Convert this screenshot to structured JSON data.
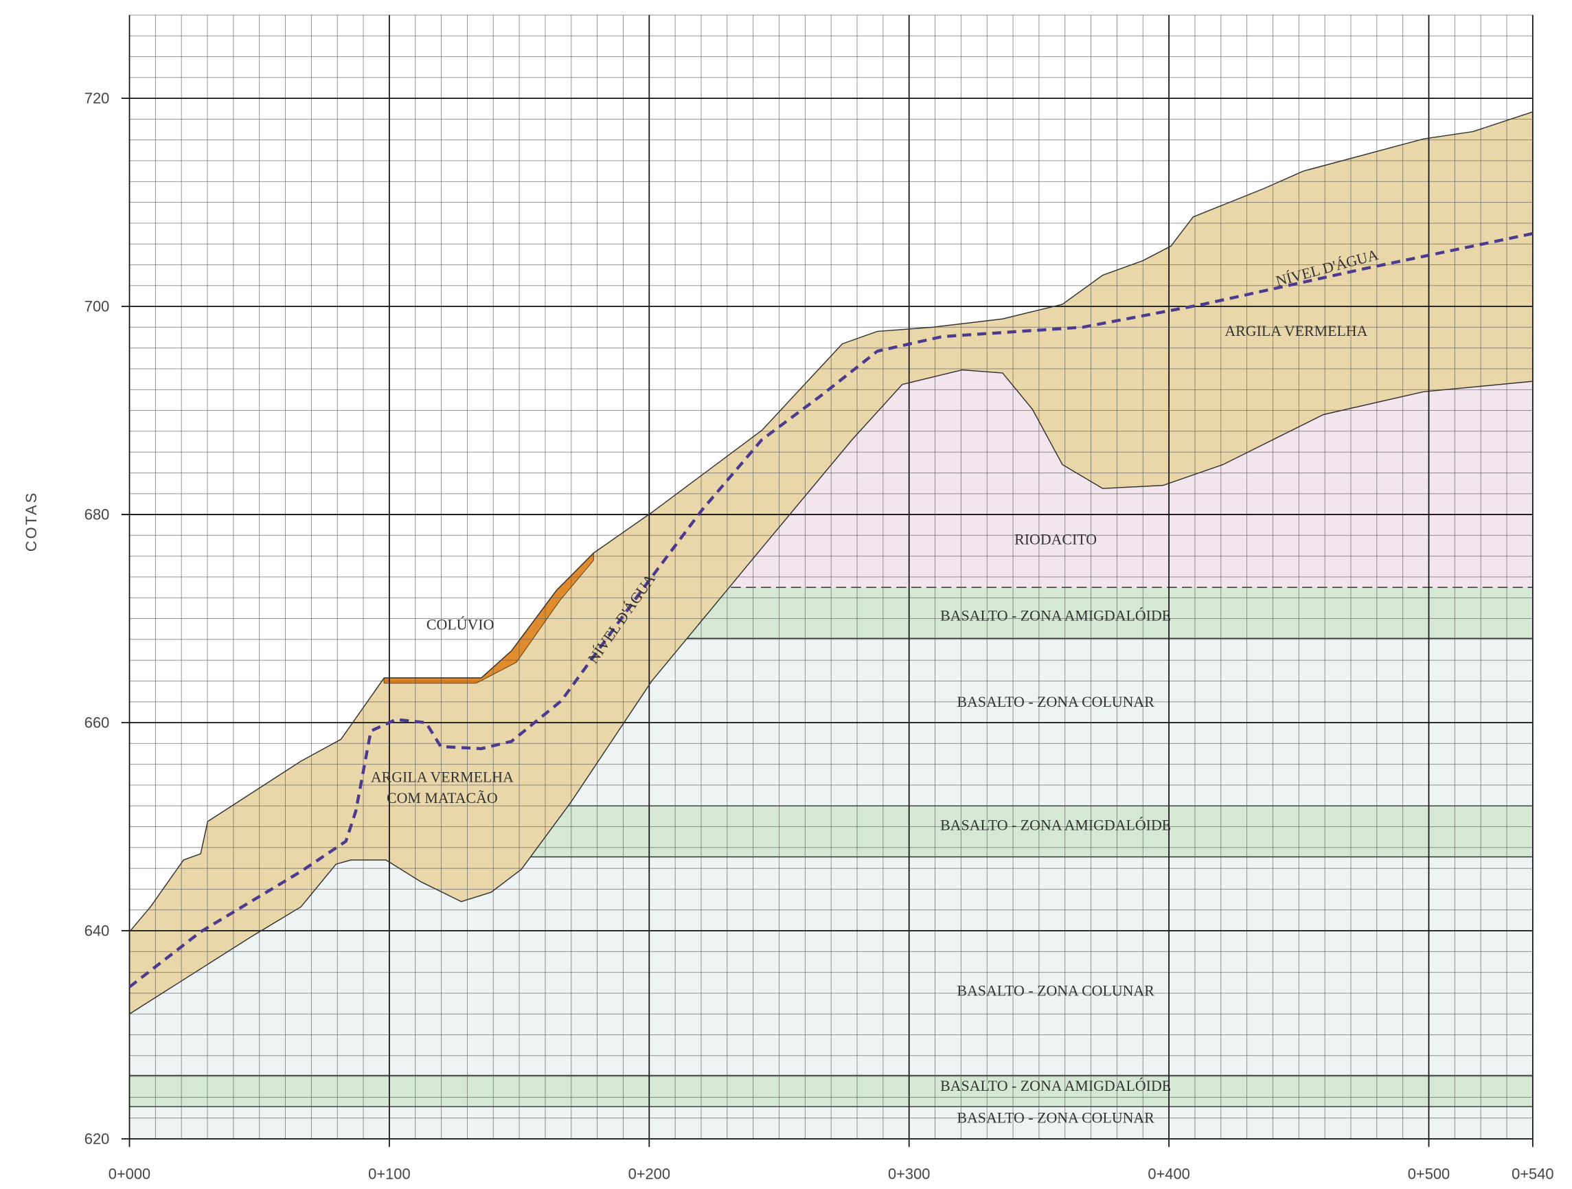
{
  "chart_data": {
    "type": "section",
    "ylabel": "COTAS",
    "xlim": [
      0,
      540
    ],
    "ylim": [
      620,
      728
    ],
    "xticks": [
      {
        "value": 0,
        "label": "0+000"
      },
      {
        "value": 100,
        "label": "0+100"
      },
      {
        "value": 200,
        "label": "0+200"
      },
      {
        "value": 300,
        "label": "0+300"
      },
      {
        "value": 400,
        "label": "0+400"
      },
      {
        "value": 500,
        "label": "0+500"
      },
      {
        "value": 540,
        "label": "0+540"
      }
    ],
    "yticks": [
      620,
      640,
      660,
      680,
      700,
      720
    ],
    "grid": true,
    "minor_grid": {
      "x": 10,
      "y": 2
    },
    "layers": [
      {
        "name": "BASALTO - ZONA COLUNAR",
        "bottom": 620,
        "top": 623.1,
        "color": "#eef3f4"
      },
      {
        "name": "BASALTO - ZONA AMIGDALÓIDE",
        "bottom": 623.1,
        "top": 626.1,
        "color": "#d5e8d3"
      },
      {
        "name": "BASALTO - ZONA COLUNAR",
        "bottom": 626.1,
        "top": 647.1,
        "color": "#eef3f4"
      },
      {
        "name": "BASALTO - ZONA AMIGDALÓIDE",
        "bottom": 647.1,
        "top": 652,
        "color": "#d5e8d3"
      },
      {
        "name": "BASALTO - ZONA COLUNAR",
        "bottom": 652,
        "top": 668.1,
        "color": "#eef3f4"
      },
      {
        "name": "BASALTO - ZONA AMIGDALÓIDE",
        "bottom": 668.1,
        "top": 673,
        "color": "#d5e8d3"
      },
      {
        "name": "RIODACITO",
        "bottom": 673,
        "top": 700,
        "color": "#f3e5ee"
      }
    ],
    "soil": {
      "labels": [
        "ARGILA VERMELHA",
        "ARGILA VERMELHA",
        "COM MATACÃO"
      ],
      "color": "#e9d7aa"
    },
    "surface": {
      "x": [
        0,
        8.1,
        20.8,
        27.4,
        30.1,
        66,
        81.4,
        98,
        135.4,
        147,
        164.3,
        178.6,
        201,
        243.4,
        274.3,
        287.8,
        309,
        336,
        359,
        374.5,
        390,
        400.8,
        409.3,
        436.3,
        451.7,
        498,
        517,
        540
      ],
      "y": [
        639.9,
        642.3,
        646.8,
        647.4,
        650.5,
        656.3,
        658.4,
        664.3,
        664.3,
        666.9,
        672.7,
        676.3,
        680.2,
        688.1,
        696.4,
        697.6,
        698,
        698.8,
        700.2,
        703,
        704.4,
        705.8,
        708.6,
        711.3,
        713,
        716.1,
        716.8,
        718.7
      ]
    },
    "soil_bottom": {
      "x": [
        0,
        46.7,
        66,
        79.5,
        85.2,
        98.7,
        112.2,
        127.7,
        139.2,
        150.8,
        170,
        201,
        243.4,
        278.1,
        297.4,
        320.5,
        336,
        347.5,
        359,
        374.5,
        397.7,
        420.8,
        459.4,
        498,
        540
      ],
      "y": [
        632,
        639.4,
        642.3,
        646.4,
        646.8,
        646.8,
        644.7,
        642.8,
        643.7,
        645.9,
        652.4,
        664,
        676.8,
        687.2,
        692.5,
        693.9,
        693.6,
        690.1,
        684.8,
        682.5,
        682.8,
        684.8,
        689.6,
        691.8,
        692.8
      ]
    },
    "colluvium": {
      "name": "COLÚVIO",
      "color": "#e08b2d",
      "x": [
        98,
        135.4,
        147,
        164.3,
        178.6,
        178.6,
        165.5,
        148.9,
        133.5,
        98
      ],
      "y": [
        664.3,
        664.3,
        666.9,
        672.7,
        676.3,
        675.6,
        671.7,
        665.8,
        663.8,
        663.8
      ]
    },
    "water_level": {
      "labels": [
        "NÍVEL D'ÁGUA",
        "NÍVEL D'ÁGUA"
      ],
      "color": "#4b3a8e",
      "x": [
        0,
        27.4,
        66,
        83.3,
        87.1,
        92.9,
        102.5,
        114.1,
        119.8,
        135.4,
        147,
        166.2,
        197.1,
        220.2,
        243.4,
        266.5,
        287.8,
        312.8,
        366.8,
        413.1,
        474.8,
        540
      ],
      "y": [
        634.6,
        639.9,
        645.7,
        648.6,
        651.5,
        659.2,
        660.3,
        660,
        657.7,
        657.5,
        658.2,
        662.1,
        672.7,
        680.4,
        687.2,
        691.5,
        695.7,
        697.1,
        698,
        700.2,
        703.6,
        707
      ]
    }
  }
}
